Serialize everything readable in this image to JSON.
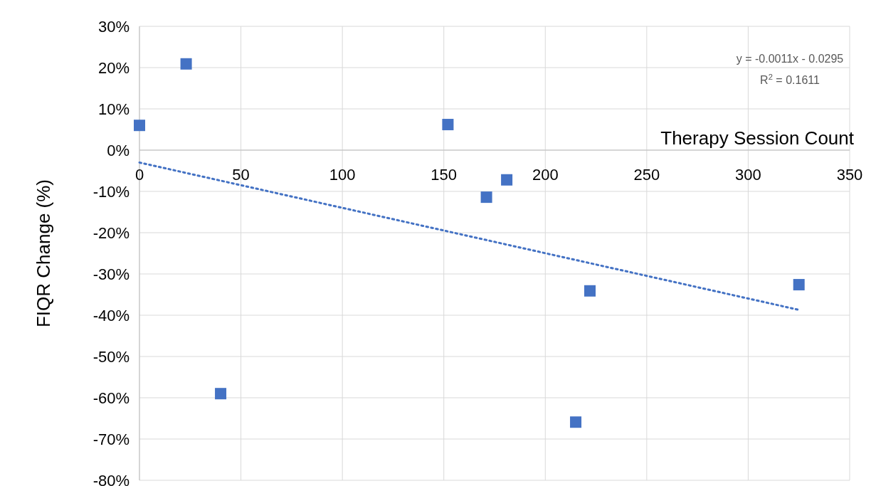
{
  "chart_data": {
    "type": "scatter",
    "xlabel": "Therapy Session Count",
    "ylabel": "FIQR Change (%)",
    "xlim": [
      0,
      350
    ],
    "xticks": [
      0,
      50,
      100,
      150,
      200,
      250,
      300,
      350
    ],
    "ylim": [
      -80,
      30
    ],
    "yticks": [
      {
        "value": 30,
        "label": "30%"
      },
      {
        "value": 20,
        "label": "20%"
      },
      {
        "value": 10,
        "label": "10%"
      },
      {
        "value": 0,
        "label": "0%"
      },
      {
        "value": -10,
        "label": "-10%"
      },
      {
        "value": -20,
        "label": "-20%"
      },
      {
        "value": -30,
        "label": "-30%"
      },
      {
        "value": -40,
        "label": "-40%"
      },
      {
        "value": -50,
        "label": "-50%"
      },
      {
        "value": -60,
        "label": "-60%"
      },
      {
        "value": -70,
        "label": "-70%"
      },
      {
        "value": -80,
        "label": "-80%"
      }
    ],
    "grid": true,
    "marker": "square",
    "annotations": [
      "y = -0.0011x  - 0.0295",
      "R$^{2}$ = 0.1611"
    ],
    "series": [
      {
        "color": "#4472c4",
        "x": [
          0,
          23,
          40,
          152,
          171,
          181,
          215,
          222,
          325
        ],
        "values": [
          6.0,
          20.9,
          -59,
          6.2,
          -11.4,
          -7.2,
          -65.9,
          -34.1,
          -32.6
        ]
      },
      {
        "type": "line",
        "color": "#4472c4",
        "line_style": "dotted",
        "marker": "none",
        "x": [
          0,
          325
        ],
        "values": [
          -3,
          -38.7
        ]
      }
    ]
  }
}
